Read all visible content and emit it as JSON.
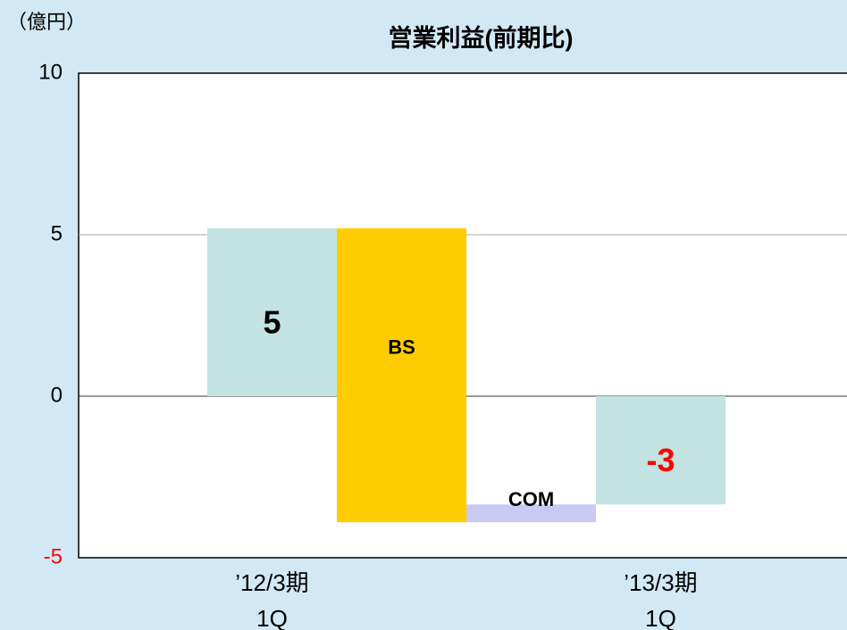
{
  "chart_data": {
    "type": "waterfall",
    "title": "営業利益(前期比)",
    "unit_label": "（億円）",
    "categories": [
      [
        "’12/3期",
        "1Q"
      ],
      "BS",
      "COM",
      [
        "’13/3期",
        "1Q"
      ]
    ],
    "kinds": [
      "total",
      "delta",
      "delta",
      "total"
    ],
    "values": [
      5.2,
      -9.1,
      0.55,
      -3.35
    ],
    "value_labels": [
      "5",
      null,
      null,
      "-3"
    ],
    "value_label_colors": [
      "#000000",
      null,
      null,
      "#ff0000"
    ],
    "colors": [
      "#c2e3e1",
      "#ffcc00",
      "#c9c9f2",
      "#c2e3e1"
    ],
    "ylim": [
      -5,
      10
    ],
    "yticks": [
      -5,
      0,
      5,
      10
    ],
    "negative_tick_color": "#ff0000",
    "grid": true
  }
}
